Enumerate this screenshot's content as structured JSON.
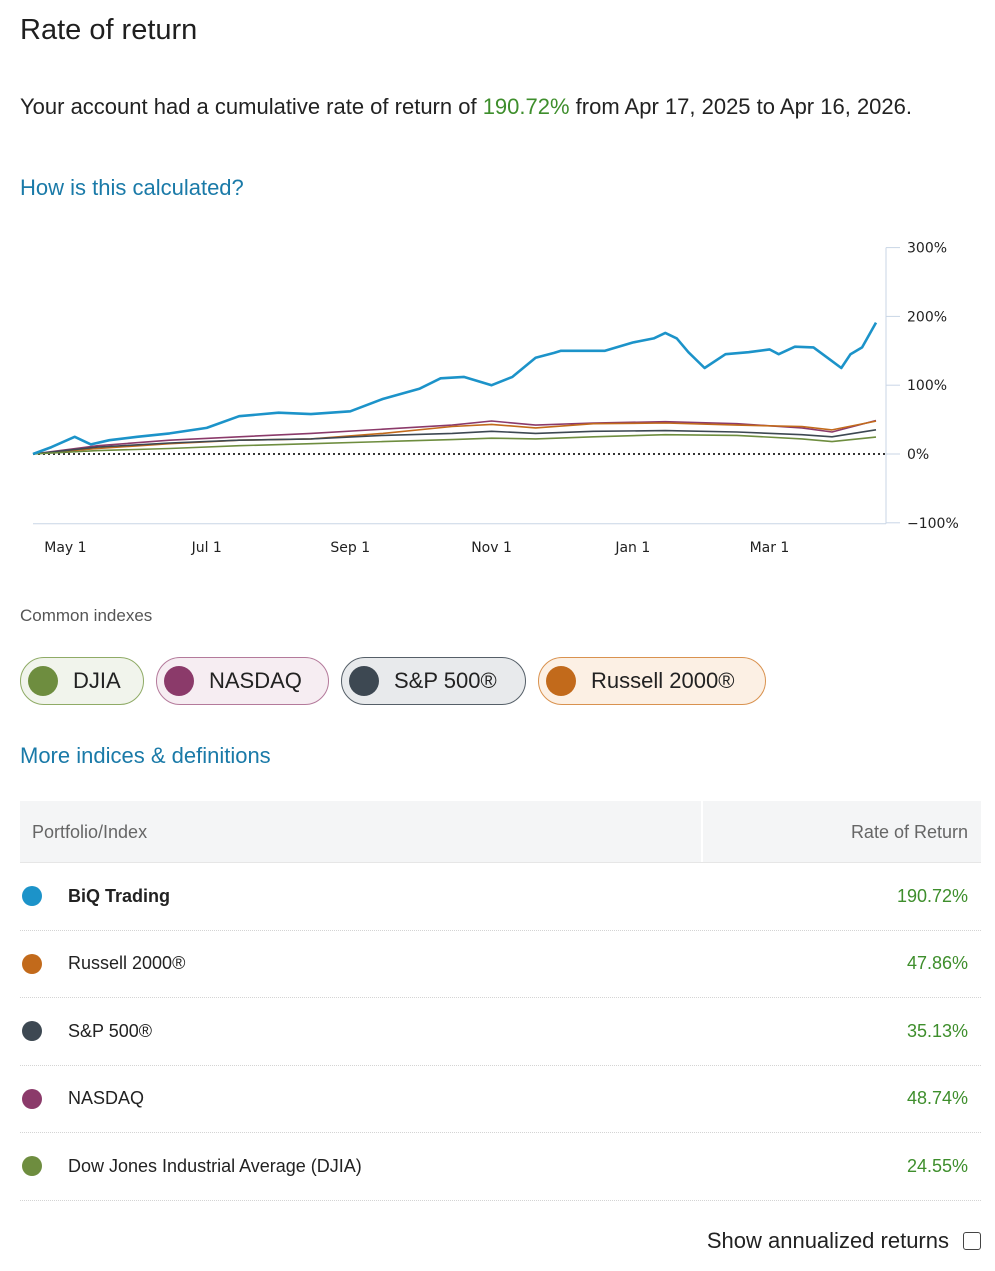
{
  "header": {
    "title": "Rate of return"
  },
  "summary": {
    "prefix": "Your account had a cumulative rate of return of ",
    "return_pct": "190.72%",
    "suffix": " from Apr 17, 2025 to Apr 16, 2026."
  },
  "links": {
    "how_calculated": "How is this calculated?",
    "more_indices": "More indices & definitions"
  },
  "colors": {
    "portfolio": "#1c93c9",
    "russell": "#c26a1b",
    "sp500": "#3d4852",
    "nasdaq": "#8b3a6a",
    "djia": "#6e8d3f",
    "positive": "#3e8e2c",
    "link": "#1a7aa8"
  },
  "indexes": {
    "label": "Common indexes",
    "pills": [
      {
        "label": "DJIA",
        "color": "#6e8d3f",
        "bg": "#f1f4ec",
        "border": "#8fab66"
      },
      {
        "label": "NASDAQ",
        "color": "#8b3a6a",
        "bg": "#f6edf2",
        "border": "#b47a9b"
      },
      {
        "label": "S&P 500®",
        "color": "#3d4852",
        "bg": "#e8eaec",
        "border": "#555f68"
      },
      {
        "label": "Russell 2000®",
        "color": "#c26a1b",
        "bg": "#fcf0e4",
        "border": "#d9924f"
      }
    ]
  },
  "table": {
    "headers": {
      "name": "Portfolio/Index",
      "value": "Rate of Return"
    },
    "rows": [
      {
        "name": "BiQ Trading",
        "value": "190.72%",
        "color": "#1c93c9",
        "bold": true
      },
      {
        "name": "Russell 2000®",
        "value": "47.86%",
        "color": "#c26a1b"
      },
      {
        "name": "S&P 500®",
        "value": "35.13%",
        "color": "#3d4852"
      },
      {
        "name": "NASDAQ",
        "value": "48.74%",
        "color": "#8b3a6a"
      },
      {
        "name": "Dow Jones Industrial Average (DJIA)",
        "value": "24.55%",
        "color": "#6e8d3f"
      }
    ]
  },
  "annualized": {
    "label": "Show annualized returns",
    "checked": false
  },
  "chart_data": {
    "type": "line",
    "title": "",
    "xlabel": "",
    "ylabel": "",
    "x_range": [
      "2025-04-17",
      "2026-04-16"
    ],
    "x_ticks": [
      {
        "date": "2025-05-01",
        "label": "May 1"
      },
      {
        "date": "2025-07-01",
        "label": "Jul 1"
      },
      {
        "date": "2025-09-01",
        "label": "Sep 1"
      },
      {
        "date": "2025-11-01",
        "label": "Nov 1"
      },
      {
        "date": "2026-01-01",
        "label": "Jan 1"
      },
      {
        "date": "2026-03-01",
        "label": "Mar 1"
      }
    ],
    "y_ticks": [
      {
        "value": 300,
        "label": "300%"
      },
      {
        "value": 200,
        "label": "200%"
      },
      {
        "value": 100,
        "label": "100%"
      },
      {
        "value": 0,
        "label": "0%"
      },
      {
        "value": -100,
        "label": "−100%"
      }
    ],
    "ylim": [
      -100,
      300
    ],
    "zero_line": "dotted",
    "grid": false,
    "y_axis_side": "right",
    "series": [
      {
        "name": "BiQ Trading",
        "color": "#1c93c9",
        "x": [
          "2025-04-17",
          "2025-04-25",
          "2025-05-05",
          "2025-05-12",
          "2025-05-20",
          "2025-06-01",
          "2025-06-15",
          "2025-07-01",
          "2025-07-15",
          "2025-08-01",
          "2025-08-15",
          "2025-09-01",
          "2025-09-15",
          "2025-10-01",
          "2025-10-10",
          "2025-10-20",
          "2025-11-01",
          "2025-11-10",
          "2025-11-20",
          "2025-11-28",
          "2025-12-01",
          "2025-12-10",
          "2025-12-20",
          "2026-01-01",
          "2026-01-10",
          "2026-01-15",
          "2026-01-20",
          "2026-01-25",
          "2026-02-01",
          "2026-02-10",
          "2026-02-20",
          "2026-03-01",
          "2026-03-05",
          "2026-03-12",
          "2026-03-20",
          "2026-03-26",
          "2026-04-01",
          "2026-04-05",
          "2026-04-10",
          "2026-04-16"
        ],
        "values": [
          0,
          10,
          25,
          14,
          20,
          25,
          30,
          38,
          55,
          60,
          58,
          62,
          80,
          95,
          110,
          112,
          100,
          112,
          140,
          147,
          150,
          150,
          150,
          162,
          168,
          176,
          168,
          148,
          125,
          145,
          148,
          152,
          145,
          156,
          155,
          140,
          125,
          145,
          155,
          191
        ]
      },
      {
        "name": "NASDAQ",
        "color": "#8b3a6a",
        "x": [
          "2025-04-17",
          "2025-05-15",
          "2025-06-15",
          "2025-07-15",
          "2025-08-15",
          "2025-09-15",
          "2025-10-15",
          "2025-11-01",
          "2025-11-20",
          "2025-12-15",
          "2026-01-15",
          "2026-02-15",
          "2026-03-15",
          "2026-03-28",
          "2026-04-16"
        ],
        "values": [
          0,
          12,
          20,
          25,
          30,
          36,
          42,
          48,
          42,
          45,
          47,
          44,
          38,
          32,
          48.74
        ]
      },
      {
        "name": "Russell 2000®",
        "color": "#c26a1b",
        "x": [
          "2025-04-17",
          "2025-05-15",
          "2025-06-15",
          "2025-07-15",
          "2025-08-15",
          "2025-09-15",
          "2025-10-15",
          "2025-11-01",
          "2025-11-20",
          "2025-12-15",
          "2026-01-15",
          "2026-02-15",
          "2026-03-15",
          "2026-03-28",
          "2026-04-16"
        ],
        "values": [
          0,
          8,
          15,
          20,
          22,
          30,
          40,
          43,
          38,
          44,
          45,
          42,
          40,
          35,
          47.86
        ]
      },
      {
        "name": "S&P 500®",
        "color": "#3d4852",
        "x": [
          "2025-04-17",
          "2025-05-15",
          "2025-06-15",
          "2025-07-15",
          "2025-08-15",
          "2025-09-15",
          "2025-10-15",
          "2025-11-01",
          "2025-11-20",
          "2025-12-15",
          "2026-01-15",
          "2026-02-15",
          "2026-03-15",
          "2026-03-28",
          "2026-04-16"
        ],
        "values": [
          0,
          10,
          16,
          20,
          22,
          27,
          30,
          33,
          30,
          33,
          34,
          32,
          28,
          25,
          35.13
        ]
      },
      {
        "name": "Dow Jones Industrial Average (DJIA)",
        "color": "#6e8d3f",
        "x": [
          "2025-04-17",
          "2025-05-15",
          "2025-06-15",
          "2025-07-15",
          "2025-08-15",
          "2025-09-15",
          "2025-10-15",
          "2025-11-01",
          "2025-11-20",
          "2025-12-15",
          "2026-01-15",
          "2026-02-15",
          "2026-03-15",
          "2026-03-28",
          "2026-04-16"
        ],
        "values": [
          0,
          5,
          8,
          12,
          15,
          18,
          21,
          23,
          22,
          25,
          28,
          27,
          22,
          18,
          24.55
        ]
      }
    ]
  }
}
